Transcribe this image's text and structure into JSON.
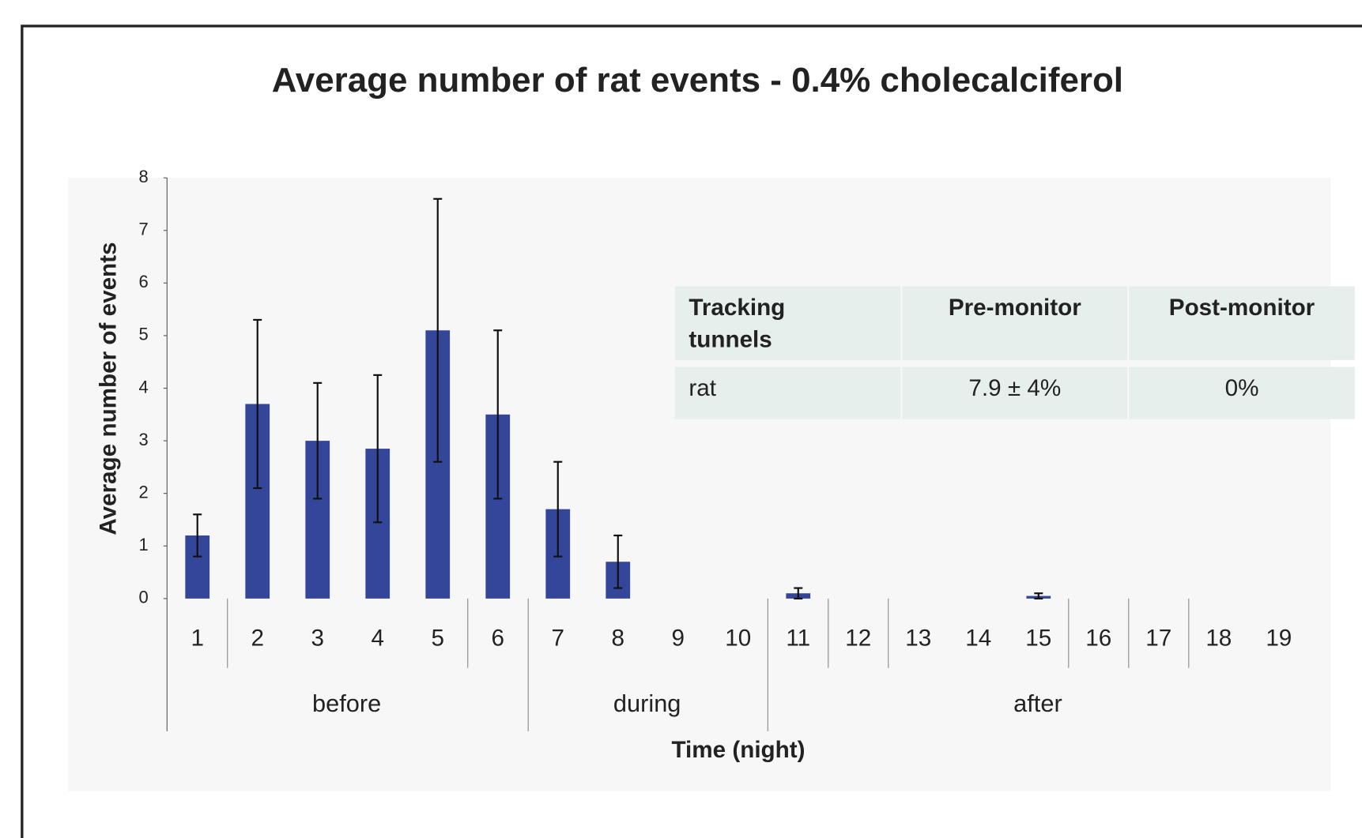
{
  "chart_data": {
    "type": "bar",
    "title": "Average number of rat events - 0.4% cholecalciferol",
    "y_label": "Average number of events",
    "x_label": "Time (night)",
    "categories": [
      "1",
      "2",
      "3",
      "4",
      "5",
      "6",
      "7",
      "8",
      "9",
      "10",
      "11",
      "12",
      "13",
      "14",
      "15",
      "16",
      "17",
      "18",
      "19"
    ],
    "values": [
      1.2,
      3.7,
      3.0,
      2.85,
      5.1,
      3.5,
      1.7,
      0.7,
      0,
      0,
      0.1,
      0,
      0,
      0,
      0.05,
      0,
      0,
      0,
      0
    ],
    "errors": [
      0.4,
      1.6,
      1.1,
      1.4,
      2.5,
      1.6,
      0.9,
      0.5,
      0,
      0,
      0.1,
      0,
      0,
      0,
      0.05,
      0,
      0,
      0,
      0
    ],
    "groups": [
      "before",
      "during",
      "after"
    ],
    "color": "#34469a",
    "ylim": [
      0,
      8
    ],
    "yticks": [
      0,
      1,
      2,
      3,
      4,
      5,
      6,
      7,
      8
    ]
  },
  "table": {
    "header": [
      "Tracking tunnels",
      "Pre-monitor",
      "Post-monitor"
    ],
    "rows": [
      [
        "rat",
        "7.9 ± 4%",
        "0%"
      ]
    ]
  }
}
